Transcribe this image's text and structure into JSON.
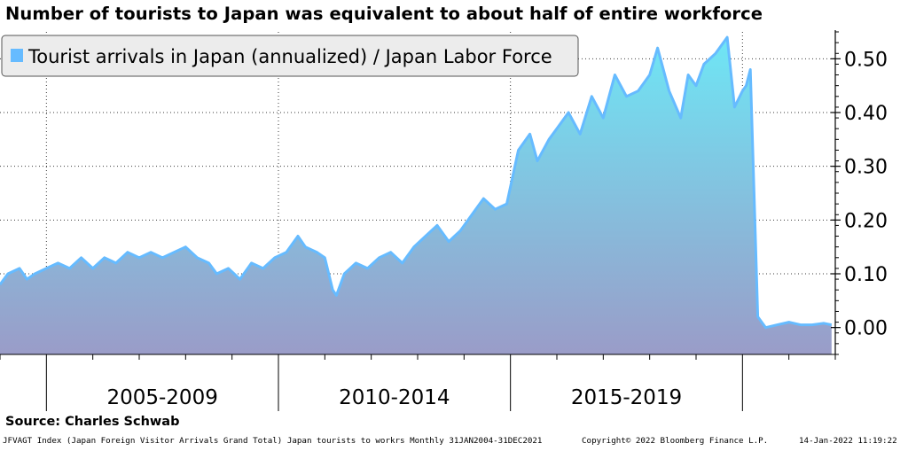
{
  "title": "Number of tourists to Japan was equivalent to about half of entire workforce",
  "source": "Source: Charles Schwab",
  "footer": {
    "left": "JFVAGT Index (Japan Foreign Visitor Arrivals Grand Total) Japan tourists to workrs  Monthly 31JAN2004-31DEC2021",
    "copyright": "Copyright© 2022 Bloomberg Finance L.P.",
    "timestamp": "14-Jan-2022 11:19:22"
  },
  "colors": {
    "line": "#66bbff",
    "fill_top": "#6ee6f5",
    "fill_bottom": "#9a9cc8",
    "grid": "#3a3a3a",
    "legend_swatch": "#66bbff",
    "legend_bg": "#ececec"
  },
  "chart_data": {
    "type": "area",
    "title": "Number of tourists to Japan was equivalent to about half of entire workforce",
    "legend": [
      "Tourist arrivals in Japan (annualized) / Japan Labor Force"
    ],
    "legend_position": "top-left",
    "y_axis_position": "right",
    "ylim": [
      -0.05,
      0.55
    ],
    "y_ticks": [
      0.0,
      0.1,
      0.2,
      0.3,
      0.4,
      0.5
    ],
    "y_tick_labels": [
      "0.00",
      "0.10",
      "0.20",
      "0.30",
      "0.40",
      "0.50"
    ],
    "xlim": [
      2004.0,
      2022.0
    ],
    "x_period_labels": [
      {
        "label": "2005-2009",
        "center": 2007.5
      },
      {
        "label": "2010-2014",
        "center": 2012.5
      },
      {
        "label": "2015-2019",
        "center": 2017.5
      }
    ],
    "x_major_ticks": [
      2005,
      2010,
      2015,
      2020
    ],
    "grid": true,
    "series": [
      {
        "name": "Tourist arrivals in Japan (annualized) / Japan Labor Force",
        "x": [
          2004.0,
          2004.17,
          2004.42,
          2004.58,
          2004.75,
          2005.0,
          2005.25,
          2005.5,
          2005.75,
          2006.0,
          2006.25,
          2006.5,
          2006.75,
          2007.0,
          2007.25,
          2007.5,
          2007.75,
          2008.0,
          2008.25,
          2008.5,
          2008.67,
          2008.92,
          2009.17,
          2009.42,
          2009.67,
          2009.92,
          2010.17,
          2010.42,
          2010.58,
          2010.83,
          2011.0,
          2011.17,
          2011.25,
          2011.42,
          2011.67,
          2011.92,
          2012.17,
          2012.42,
          2012.67,
          2012.92,
          2013.17,
          2013.42,
          2013.67,
          2013.92,
          2014.17,
          2014.42,
          2014.67,
          2014.92,
          2015.17,
          2015.42,
          2015.58,
          2015.83,
          2016.0,
          2016.25,
          2016.5,
          2016.75,
          2017.0,
          2017.25,
          2017.5,
          2017.75,
          2018.0,
          2018.17,
          2018.42,
          2018.67,
          2018.83,
          2019.0,
          2019.17,
          2019.42,
          2019.67,
          2019.83,
          2020.0,
          2020.08,
          2020.17,
          2020.25,
          2020.33,
          2020.5,
          2020.75,
          2021.0,
          2021.25,
          2021.5,
          2021.75,
          2021.92
        ],
        "values": [
          0.08,
          0.1,
          0.11,
          0.09,
          0.1,
          0.11,
          0.12,
          0.11,
          0.13,
          0.11,
          0.13,
          0.12,
          0.14,
          0.13,
          0.14,
          0.13,
          0.14,
          0.15,
          0.13,
          0.12,
          0.1,
          0.11,
          0.09,
          0.12,
          0.11,
          0.13,
          0.14,
          0.17,
          0.15,
          0.14,
          0.13,
          0.07,
          0.06,
          0.1,
          0.12,
          0.11,
          0.13,
          0.14,
          0.12,
          0.15,
          0.17,
          0.19,
          0.16,
          0.18,
          0.21,
          0.24,
          0.22,
          0.23,
          0.33,
          0.36,
          0.31,
          0.35,
          0.37,
          0.4,
          0.36,
          0.43,
          0.39,
          0.47,
          0.43,
          0.44,
          0.47,
          0.52,
          0.44,
          0.39,
          0.47,
          0.45,
          0.49,
          0.51,
          0.54,
          0.41,
          0.44,
          0.45,
          0.48,
          0.25,
          0.02,
          0.0,
          0.005,
          0.01,
          0.005,
          0.005,
          0.008,
          0.005
        ]
      }
    ]
  }
}
